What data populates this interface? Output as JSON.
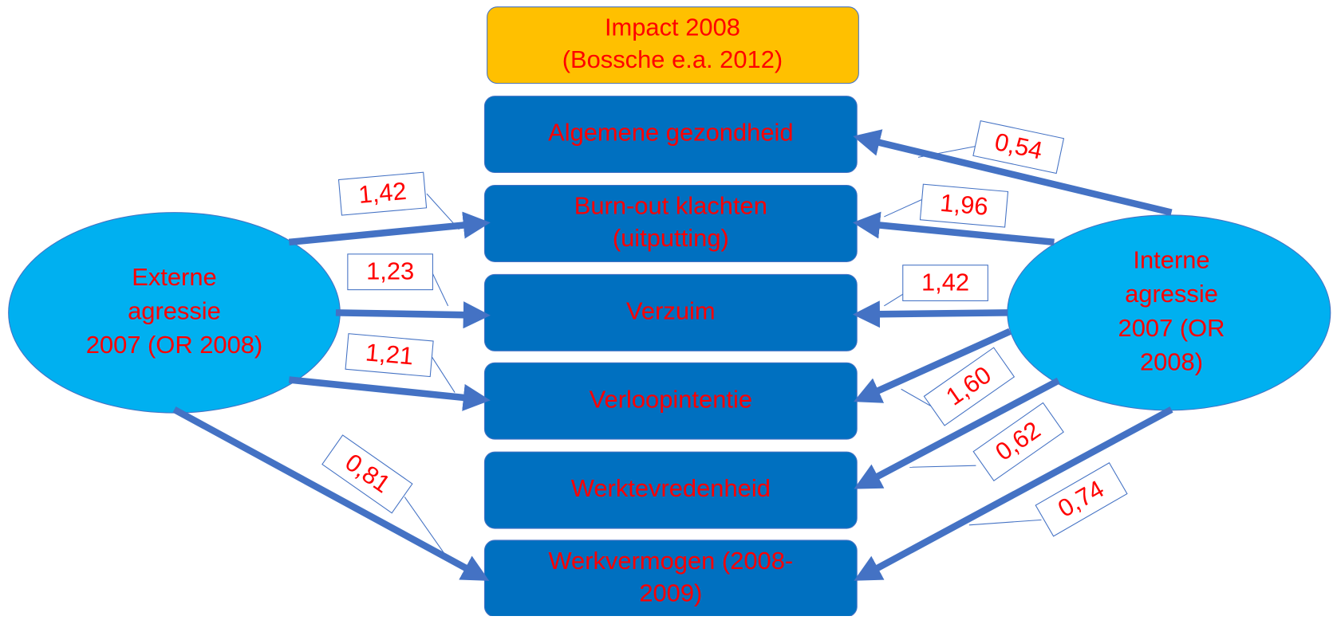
{
  "header": {
    "lines": [
      "Impact 2008",
      "(Bossche e.a. 2012)"
    ]
  },
  "outcomes": [
    {
      "lines": [
        "Algemene gezondheid"
      ]
    },
    {
      "lines": [
        "Burn-out klachten",
        "(uitputting)"
      ]
    },
    {
      "lines": [
        "Verzuim"
      ]
    },
    {
      "lines": [
        "Verloopintentie"
      ]
    },
    {
      "lines": [
        "Werktevredenheid"
      ]
    },
    {
      "lines": [
        "Werkvermogen (2008-",
        "2009)"
      ]
    }
  ],
  "sources": [
    {
      "lines": [
        "Externe",
        "agressie",
        "2007 (OR 2008)"
      ]
    },
    {
      "lines": [
        "Interne",
        "agressie",
        "2007 (OR",
        "2008)"
      ]
    }
  ],
  "edges": [
    {
      "label": "1,42"
    },
    {
      "label": "1,23"
    },
    {
      "label": "1,21"
    },
    {
      "label": "0,81"
    },
    {
      "label": "0,54"
    },
    {
      "label": "1,96"
    },
    {
      "label": "1,42"
    },
    {
      "label": "1,60"
    },
    {
      "label": "0,62"
    },
    {
      "label": "0,74"
    }
  ]
}
